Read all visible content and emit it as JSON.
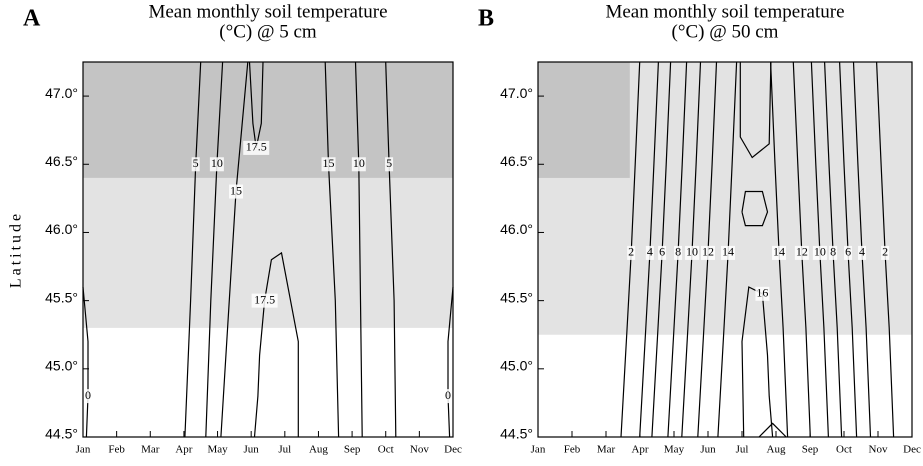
{
  "chart_data": [
    {
      "type": "contour",
      "panel": "A",
      "title": [
        "Mean monthly soil temperature",
        "(°C) @ 5 cm"
      ],
      "ylabel": "Latitude",
      "xlim": [
        1,
        12
      ],
      "xticks": [
        {
          "value": 1,
          "label": "Jan"
        },
        {
          "value": 2,
          "label": "Feb"
        },
        {
          "value": 3,
          "label": "Mar"
        },
        {
          "value": 4,
          "label": "Apr"
        },
        {
          "value": 5,
          "label": "May"
        },
        {
          "value": 6,
          "label": "Jun"
        },
        {
          "value": 7,
          "label": "Jul"
        },
        {
          "value": 8,
          "label": "Aug"
        },
        {
          "value": 9,
          "label": "Sep"
        },
        {
          "value": 10,
          "label": "Oct"
        },
        {
          "value": 11,
          "label": "Nov"
        },
        {
          "value": 12,
          "label": "Dec"
        }
      ],
      "ylim": [
        44.5,
        47.25
      ],
      "yticks": [
        {
          "value": 44.5,
          "label": "44.5°"
        },
        {
          "value": 45,
          "label": "45.0°"
        },
        {
          "value": 45.5,
          "label": "45.5°"
        },
        {
          "value": 46,
          "label": "46.0°"
        },
        {
          "value": 46.5,
          "label": "46.5°"
        },
        {
          "value": 47,
          "label": "47.0°"
        }
      ],
      "shading": [
        {
          "x": [
            1,
            12
          ],
          "y": [
            45.3,
            46.4
          ],
          "color": "#e3e3e3"
        },
        {
          "x": [
            1,
            12
          ],
          "y": [
            46.4,
            47.25
          ],
          "color": "#c4c4c4"
        }
      ],
      "line_color": "#000000",
      "contours": [
        {
          "level": 0,
          "labeled": true,
          "x": [
            1,
            1.15,
            1.15,
            1.1
          ],
          "y": [
            45.6,
            45.2,
            44.8,
            44.5
          ]
        },
        {
          "level": 5,
          "labeled": true,
          "x": [
            4.03,
            4.2,
            4.35,
            4.5
          ],
          "y": [
            44.5,
            45.5,
            46.5,
            47.25
          ]
        },
        {
          "level": 10,
          "labeled": true,
          "x": [
            4.65,
            4.8,
            4.98,
            5.15
          ],
          "y": [
            44.5,
            45.5,
            46.5,
            47.25
          ]
        },
        {
          "level": 15,
          "labeled": true,
          "x": [
            5.1,
            5.3,
            5.55,
            5.9
          ],
          "y": [
            44.5,
            45.3,
            46.3,
            47.25
          ]
        },
        {
          "level": 17.5,
          "labeled": true,
          "x": [
            7.4,
            7.4,
            6.9,
            6.6,
            6.4,
            6.25,
            6.2,
            6.1
          ],
          "y": [
            44.5,
            45.2,
            45.85,
            45.8,
            45.5,
            45.1,
            44.8,
            44.5
          ]
        },
        {
          "level": 17.5,
          "labeled": true,
          "x": [
            5.95,
            6.05,
            6.15,
            6.3,
            6.35
          ],
          "y": [
            47.25,
            46.8,
            46.62,
            46.8,
            47.25
          ]
        },
        {
          "level": 15,
          "labeled": true,
          "x": [
            8.6,
            8.5,
            8.3,
            8.2
          ],
          "y": [
            44.5,
            45.5,
            46.5,
            47.25
          ]
        },
        {
          "level": 10,
          "labeled": true,
          "x": [
            9.3,
            9.25,
            9.2,
            9.1
          ],
          "y": [
            44.5,
            45.5,
            46.5,
            47.25
          ]
        },
        {
          "level": 5,
          "labeled": true,
          "x": [
            10.3,
            10.25,
            10.1,
            10.0
          ],
          "y": [
            44.5,
            45.5,
            46.5,
            47.25
          ]
        },
        {
          "level": 0,
          "labeled": true,
          "x": [
            12,
            11.85,
            11.85,
            11.9
          ],
          "y": [
            45.6,
            45.2,
            44.8,
            44.5
          ]
        }
      ]
    },
    {
      "type": "contour",
      "panel": "B",
      "title": [
        "Mean monthly soil temperature",
        "(°C) @ 50 cm"
      ],
      "xlim": [
        1,
        12
      ],
      "xticks": [
        {
          "value": 1,
          "label": "Jan"
        },
        {
          "value": 2,
          "label": "Feb"
        },
        {
          "value": 3,
          "label": "Mar"
        },
        {
          "value": 4,
          "label": "Apr"
        },
        {
          "value": 5,
          "label": "May"
        },
        {
          "value": 6,
          "label": "Jun"
        },
        {
          "value": 7,
          "label": "Jul"
        },
        {
          "value": 8,
          "label": "Aug"
        },
        {
          "value": 9,
          "label": "Sep"
        },
        {
          "value": 10,
          "label": "Oct"
        },
        {
          "value": 11,
          "label": "Nov"
        },
        {
          "value": 12,
          "label": "Dec"
        }
      ],
      "ylim": [
        44.5,
        47.25
      ],
      "yticks": [
        {
          "value": 44.5,
          "label": "44.5°"
        },
        {
          "value": 45,
          "label": "45.0°"
        },
        {
          "value": 45.5,
          "label": "45.5°"
        },
        {
          "value": 46,
          "label": "46.0°"
        },
        {
          "value": 46.5,
          "label": "46.5°"
        },
        {
          "value": 47,
          "label": "47.0°"
        }
      ],
      "shading": [
        {
          "x": [
            1,
            12
          ],
          "y": [
            45.25,
            47.25
          ],
          "color": "#e3e3e3"
        },
        {
          "x": [
            1,
            3.7
          ],
          "y": [
            46.4,
            47.25
          ],
          "color": "#c4c4c4"
        }
      ],
      "line_color": "#000000",
      "contours": [
        {
          "level": 2,
          "labeled": true,
          "x": [
            3.44,
            3.62,
            3.74,
            3.86,
            3.99
          ],
          "y": [
            44.5,
            45.3,
            45.85,
            46.5,
            47.25
          ]
        },
        {
          "level": 4,
          "labeled": true,
          "x": [
            3.99,
            4.17,
            4.29,
            4.41,
            4.54
          ],
          "y": [
            44.5,
            45.3,
            45.85,
            46.5,
            47.25
          ]
        },
        {
          "level": 6,
          "labeled": true,
          "x": [
            4.35,
            4.53,
            4.65,
            4.77,
            4.9
          ],
          "y": [
            44.5,
            45.3,
            45.85,
            46.5,
            47.25
          ]
        },
        {
          "level": 8,
          "labeled": true,
          "x": [
            4.82,
            5.0,
            5.12,
            5.24,
            5.37
          ],
          "y": [
            44.5,
            45.3,
            45.85,
            46.5,
            47.25
          ]
        },
        {
          "level": 10,
          "labeled": true,
          "x": [
            5.23,
            5.41,
            5.53,
            5.65,
            5.78
          ],
          "y": [
            44.5,
            45.3,
            45.85,
            46.5,
            47.25
          ]
        },
        {
          "level": 12,
          "labeled": true,
          "x": [
            5.7,
            5.88,
            6.0,
            6.12,
            6.25
          ],
          "y": [
            44.5,
            45.3,
            45.85,
            46.5,
            47.25
          ]
        },
        {
          "level": 14,
          "labeled": true,
          "x": [
            6.29,
            6.47,
            6.59,
            6.71,
            6.84
          ],
          "y": [
            44.5,
            45.3,
            45.85,
            46.5,
            47.25
          ]
        },
        {
          "level": 16,
          "labeled": false,
          "x": [
            6.95,
            6.95,
            7.3,
            7.8,
            7.85
          ],
          "y": [
            47.25,
            46.7,
            46.55,
            46.65,
            47.25
          ]
        },
        {
          "level": 16,
          "labeled": false,
          "x": [
            7.0,
            7.1,
            7.6,
            7.75,
            7.6,
            7.1,
            7.0
          ],
          "y": [
            46.15,
            46.3,
            46.3,
            46.15,
            46.05,
            46.05,
            46.15
          ]
        },
        {
          "level": 16,
          "labeled": true,
          "x": [
            7.05,
            7.0,
            7.2,
            7.6,
            7.75,
            7.8,
            7.9
          ],
          "y": [
            44.5,
            45.2,
            45.6,
            45.55,
            45.1,
            44.8,
            44.5
          ]
        },
        {
          "level": 16,
          "labeled": false,
          "x": [
            7.5,
            7.9,
            8.3
          ],
          "y": [
            44.5,
            44.6,
            44.5
          ]
        },
        {
          "level": 14,
          "labeled": true,
          "x": [
            8.34,
            8.21,
            8.09,
            7.97,
            7.84
          ],
          "y": [
            44.5,
            45.3,
            45.85,
            46.5,
            47.25
          ]
        },
        {
          "level": 12,
          "labeled": true,
          "x": [
            9.01,
            8.88,
            8.76,
            8.64,
            8.51
          ],
          "y": [
            44.5,
            45.3,
            45.85,
            46.5,
            47.25
          ]
        },
        {
          "level": 10,
          "labeled": true,
          "x": [
            9.54,
            9.41,
            9.29,
            9.17,
            9.04
          ],
          "y": [
            44.5,
            45.3,
            45.85,
            46.5,
            47.25
          ]
        },
        {
          "level": 8,
          "labeled": true,
          "x": [
            9.93,
            9.8,
            9.68,
            9.56,
            9.43
          ],
          "y": [
            44.5,
            45.3,
            45.85,
            46.5,
            47.25
          ]
        },
        {
          "level": 6,
          "labeled": true,
          "x": [
            10.37,
            10.24,
            10.12,
            10.0,
            9.87
          ],
          "y": [
            44.5,
            45.3,
            45.85,
            46.5,
            47.25
          ]
        },
        {
          "level": 4,
          "labeled": true,
          "x": [
            10.78,
            10.65,
            10.53,
            10.41,
            10.28
          ],
          "y": [
            44.5,
            45.3,
            45.85,
            46.5,
            47.25
          ]
        },
        {
          "level": 2,
          "labeled": true,
          "x": [
            11.46,
            11.33,
            11.21,
            11.09,
            10.96
          ],
          "y": [
            44.5,
            45.3,
            45.85,
            46.5,
            47.25
          ]
        }
      ]
    }
  ]
}
